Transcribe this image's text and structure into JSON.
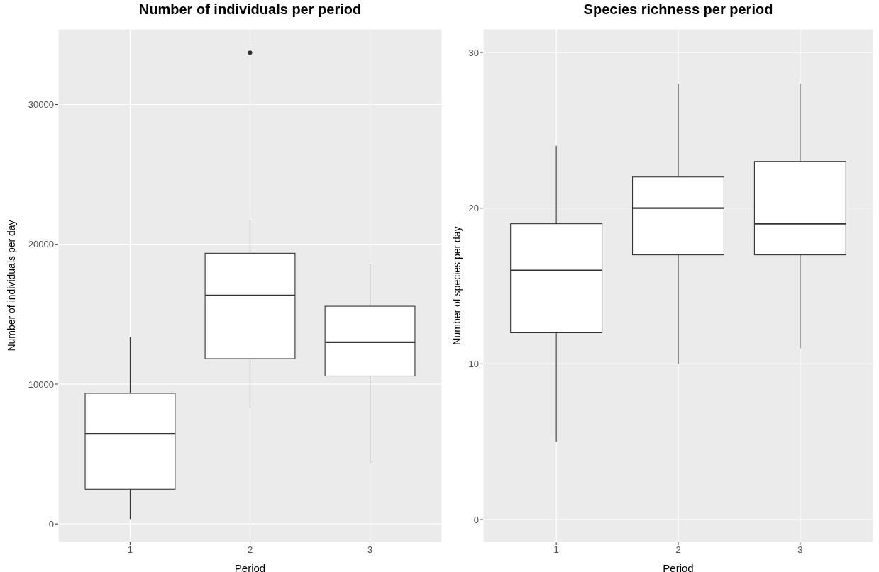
{
  "chart_data": [
    {
      "type": "box",
      "title": "Number of individuals per period",
      "xlabel": "Period",
      "ylabel": "Number of individuals per day",
      "categories": [
        "1",
        "2",
        "3"
      ],
      "boxes": [
        {
          "low": 350,
          "q1": 2480,
          "median": 6440,
          "q3": 9340,
          "high": 13390
        },
        {
          "low": 8300,
          "q1": 11820,
          "median": 16340,
          "q3": 19360,
          "high": 21750,
          "outliers": [
            33720
          ]
        },
        {
          "low": 4260,
          "q1": 10580,
          "median": 13000,
          "q3": 15570,
          "high": 18570
        }
      ],
      "ylim": [
        -1310,
        35400
      ],
      "yticks": [
        0,
        10000,
        20000,
        30000
      ],
      "grid": true
    },
    {
      "type": "box",
      "title": "Species richness per period",
      "xlabel": "Period",
      "ylabel": "Number of species per day",
      "categories": [
        "1",
        "2",
        "3"
      ],
      "boxes": [
        {
          "low": 5,
          "q1": 12,
          "median": 16,
          "q3": 19,
          "high": 24
        },
        {
          "low": 10,
          "q1": 17,
          "median": 20,
          "q3": 22,
          "high": 28
        },
        {
          "low": 11,
          "q1": 17,
          "median": 19,
          "q3": 23,
          "high": 28
        }
      ],
      "ylim": [
        -1.45,
        31.5
      ],
      "yticks": [
        0,
        10,
        20,
        30
      ],
      "grid": true
    }
  ]
}
